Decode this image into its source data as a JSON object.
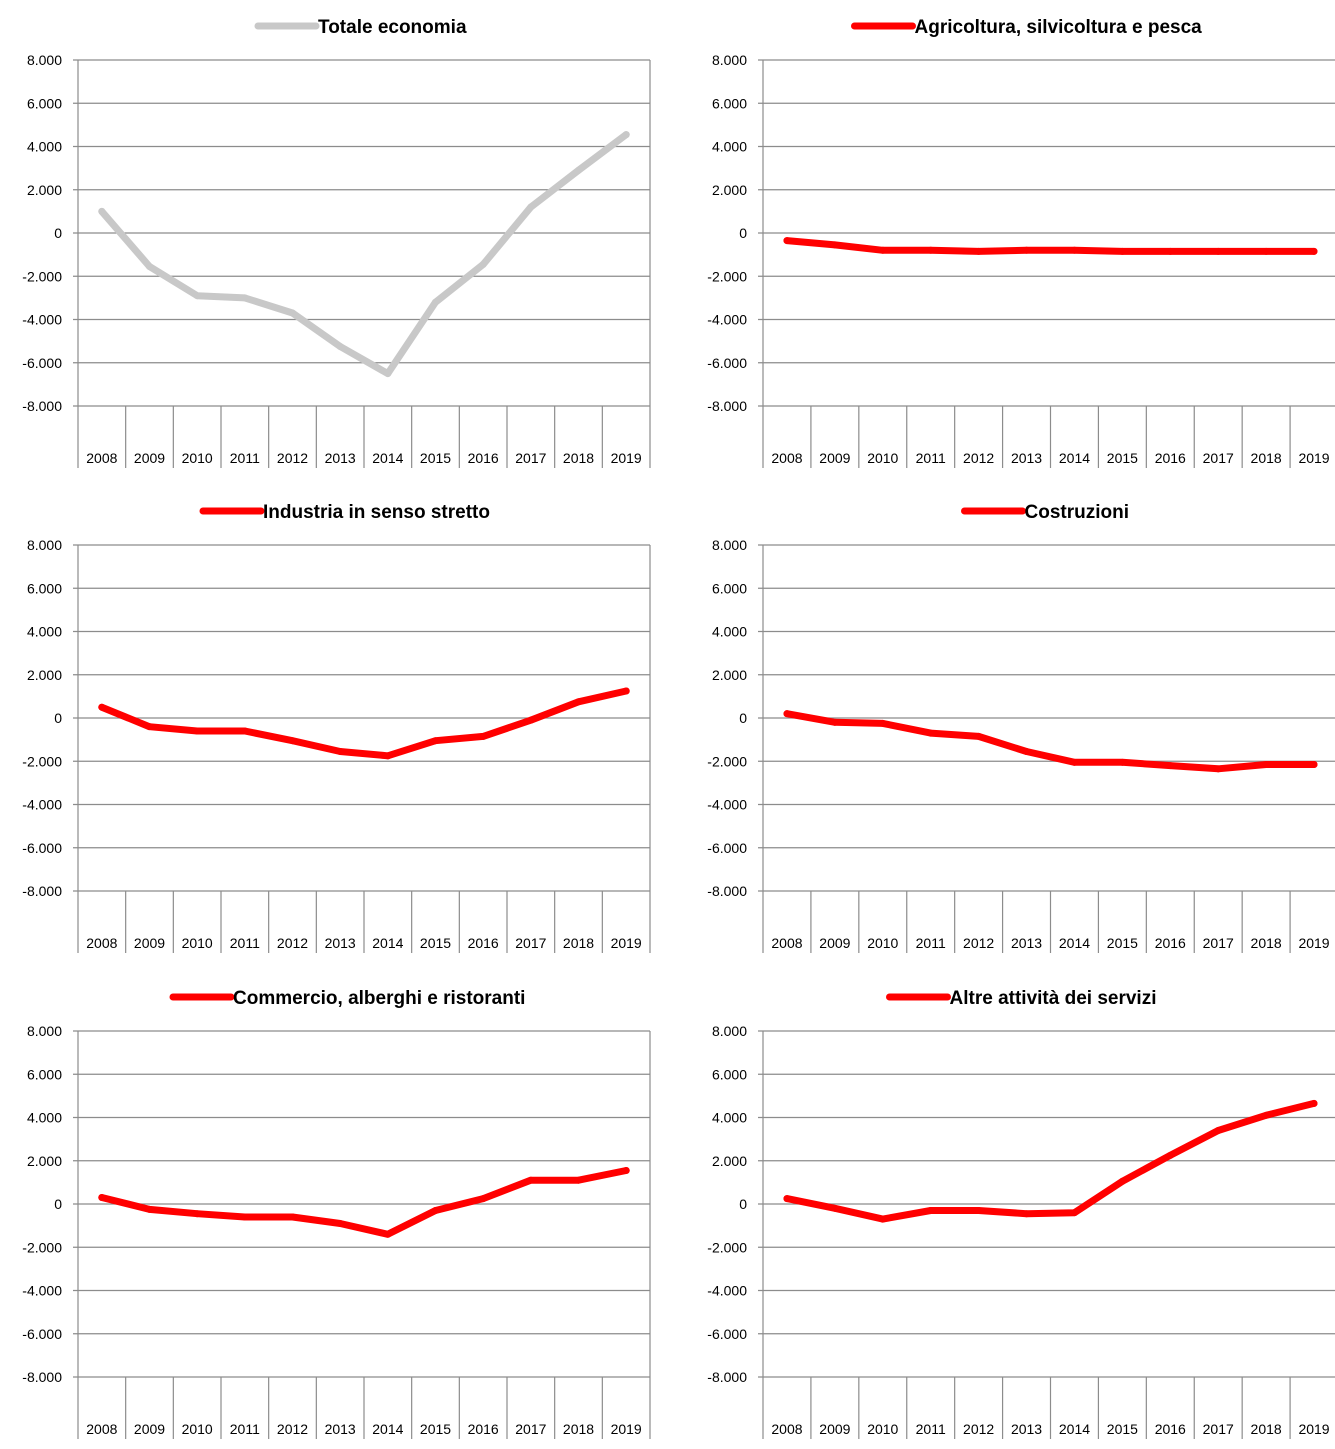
{
  "y_ticks": [
    "8.000",
    "6.000",
    "4.000",
    "2.000",
    "0",
    "-2.000",
    "-4.000",
    "-6.000",
    "-8.000"
  ],
  "chart_data": [
    {
      "type": "line",
      "title": "Totale economia",
      "color": "#c8c8c8",
      "categories": [
        "2008",
        "2009",
        "2010",
        "2011",
        "2012",
        "2013",
        "2014",
        "2015",
        "2016",
        "2017",
        "2018",
        "2019"
      ],
      "series": [
        {
          "name": "Totale economia",
          "values": [
            1000,
            -1550,
            -2900,
            -3000,
            -3700,
            -5250,
            -6500,
            -3200,
            -1450,
            1200,
            2900,
            4550
          ]
        }
      ],
      "ylim": [
        -8000,
        8000
      ],
      "grid": true,
      "legend": "top"
    },
    {
      "type": "line",
      "title": "Agricoltura, silvicoltura e pesca",
      "color": "#ff0000",
      "categories": [
        "2008",
        "2009",
        "2010",
        "2011",
        "2012",
        "2013",
        "2014",
        "2015",
        "2016",
        "2017",
        "2018",
        "2019"
      ],
      "series": [
        {
          "name": "Agricoltura, silvicoltura e pesca",
          "values": [
            -350,
            -550,
            -800,
            -800,
            -850,
            -800,
            -800,
            -850,
            -850,
            -850,
            -850,
            -850
          ]
        }
      ],
      "ylim": [
        -8000,
        8000
      ],
      "grid": true,
      "legend": "top"
    },
    {
      "type": "line",
      "title": "Industria in senso stretto",
      "color": "#ff0000",
      "categories": [
        "2008",
        "2009",
        "2010",
        "2011",
        "2012",
        "2013",
        "2014",
        "2015",
        "2016",
        "2017",
        "2018",
        "2019"
      ],
      "series": [
        {
          "name": "Industria in senso stretto",
          "values": [
            500,
            -400,
            -600,
            -600,
            -1050,
            -1550,
            -1750,
            -1050,
            -850,
            -100,
            750,
            1250
          ]
        }
      ],
      "ylim": [
        -8000,
        8000
      ],
      "grid": true,
      "legend": "top"
    },
    {
      "type": "line",
      "title": "Costruzioni",
      "color": "#ff0000",
      "categories": [
        "2008",
        "2009",
        "2010",
        "2011",
        "2012",
        "2013",
        "2014",
        "2015",
        "2016",
        "2017",
        "2018",
        "2019"
      ],
      "series": [
        {
          "name": "Costruzioni",
          "values": [
            200,
            -200,
            -250,
            -700,
            -850,
            -1550,
            -2050,
            -2050,
            -2200,
            -2350,
            -2150,
            -2150
          ]
        }
      ],
      "ylim": [
        -8000,
        8000
      ],
      "grid": true,
      "legend": "top"
    },
    {
      "type": "line",
      "title": "Commercio, alberghi e ristoranti",
      "color": "#ff0000",
      "categories": [
        "2008",
        "2009",
        "2010",
        "2011",
        "2012",
        "2013",
        "2014",
        "2015",
        "2016",
        "2017",
        "2018",
        "2019"
      ],
      "series": [
        {
          "name": "Commercio, alberghi e ristoranti",
          "values": [
            300,
            -250,
            -450,
            -600,
            -600,
            -900,
            -1400,
            -300,
            250,
            1100,
            1100,
            1550
          ]
        }
      ],
      "ylim": [
        -8000,
        8000
      ],
      "grid": true,
      "legend": "top"
    },
    {
      "type": "line",
      "title": "Altre attività dei servizi",
      "color": "#ff0000",
      "categories": [
        "2008",
        "2009",
        "2010",
        "2011",
        "2012",
        "2013",
        "2014",
        "2015",
        "2016",
        "2017",
        "2018",
        "2019"
      ],
      "series": [
        {
          "name": "Altre attività dei servizi",
          "values": [
            250,
            -200,
            -700,
            -300,
            -300,
            -450,
            -400,
            1050,
            2250,
            3400,
            4100,
            4650
          ]
        }
      ],
      "ylim": [
        -8000,
        8000
      ],
      "grid": true,
      "legend": "top"
    }
  ]
}
